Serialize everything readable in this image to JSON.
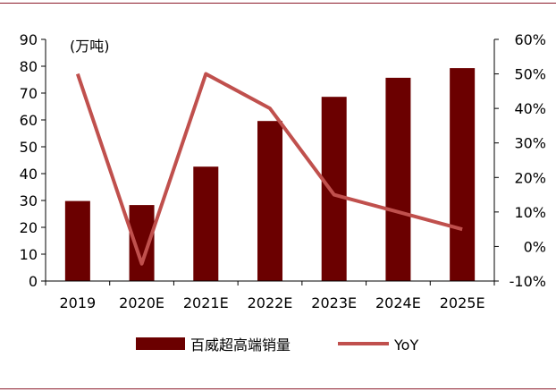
{
  "chart_data": {
    "type": "bar",
    "categories": [
      "2019",
      "2020E",
      "2021E",
      "2022E",
      "2023E",
      "2024E",
      "2025E"
    ],
    "series": [
      {
        "name": "百威超高端销量",
        "type": "bar",
        "axis": "left",
        "values": [
          29.8,
          28.3,
          42.6,
          59.6,
          68.6,
          75.7,
          79.3
        ],
        "color": "#6b0000"
      },
      {
        "name": "YoY",
        "type": "line",
        "axis": "right",
        "values": [
          50,
          -5,
          50,
          40,
          15,
          10,
          5
        ],
        "color": "#c0504d"
      }
    ],
    "unit_label": "(万吨)",
    "y_left": {
      "ylim": [
        0,
        90
      ],
      "ticks": [
        0,
        10,
        20,
        30,
        40,
        50,
        60,
        70,
        80,
        90
      ]
    },
    "y_right": {
      "ylim": [
        -10,
        60
      ],
      "ticks": [
        "-10%",
        "0%",
        "10%",
        "20%",
        "30%",
        "40%",
        "50%",
        "60%"
      ]
    },
    "grid": false,
    "legend": "bottom"
  }
}
